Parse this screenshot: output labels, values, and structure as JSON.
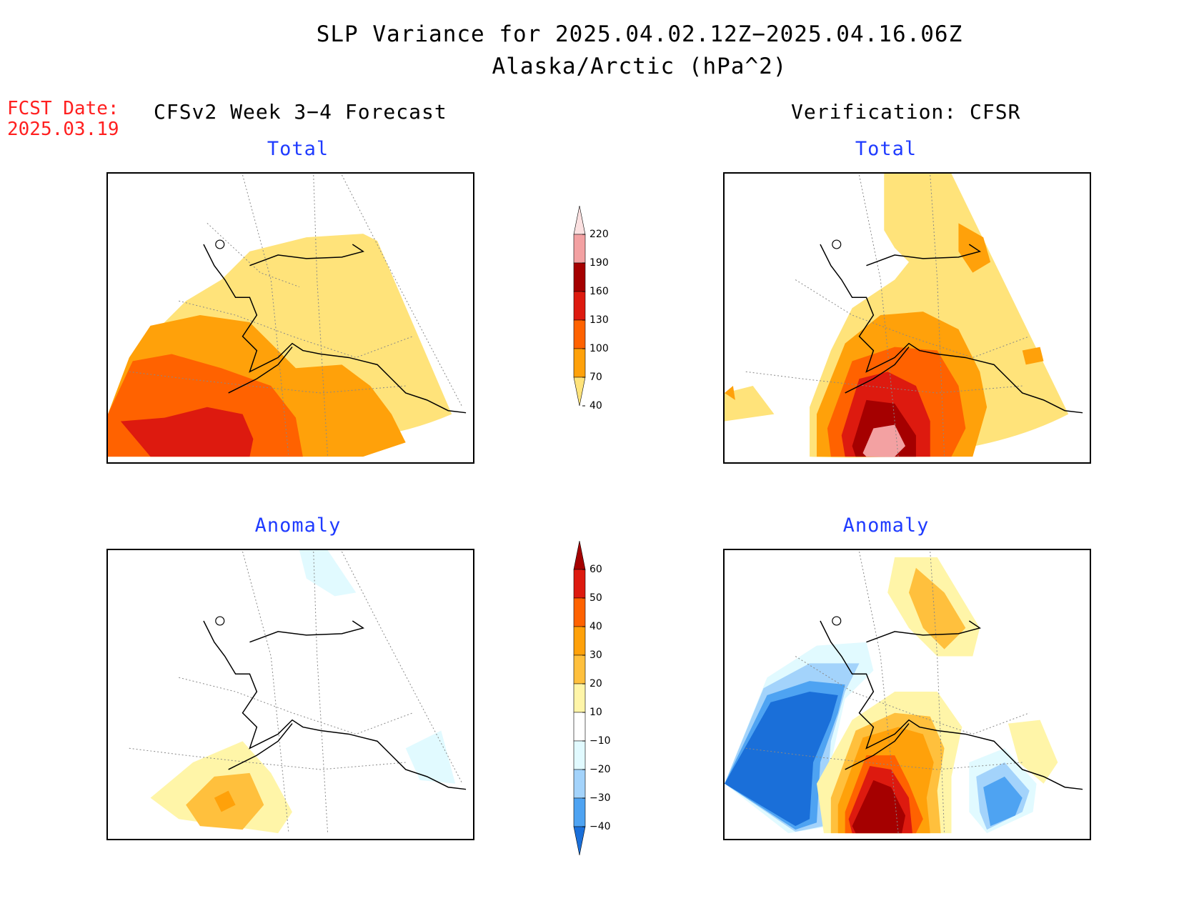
{
  "header": {
    "title": "SLP Variance for 2025.04.02.12Z−2025.04.16.06Z",
    "subtitle": "Alaska/Arctic (hPa^2)",
    "fcst_label": "FCST Date:",
    "fcst_date": "2025.03.19",
    "left_column": "CFSv2 Week 3−4 Forecast",
    "right_column": "Verification: CFSR"
  },
  "panels": {
    "forecast_total": {
      "title": "Total"
    },
    "verification_total": {
      "title": "Total"
    },
    "forecast_anomaly": {
      "title": "Anomaly"
    },
    "verification_anomaly": {
      "title": "Anomaly"
    }
  },
  "colorbars": {
    "total": {
      "labels": [
        "220",
        "190",
        "160",
        "130",
        "100",
        "70",
        "40"
      ],
      "colors": [
        "#fbe0e0",
        "#f3a1a2",
        "#a50000",
        "#dd1a0f",
        "#ff6200",
        "#ffa10a",
        "#ffe37a"
      ]
    },
    "anomaly": {
      "labels": [
        "60",
        "50",
        "40",
        "30",
        "20",
        "10",
        "−10",
        "−20",
        "−30",
        "−40"
      ],
      "colors": [
        "#a50000",
        "#dd1a0f",
        "#ff6200",
        "#ffa10a",
        "#ffc03d",
        "#fff5a8",
        "#ffffff",
        "#e1faff",
        "#a3d3fb",
        "#4ea3f2",
        "#1a6fd9"
      ]
    }
  }
}
